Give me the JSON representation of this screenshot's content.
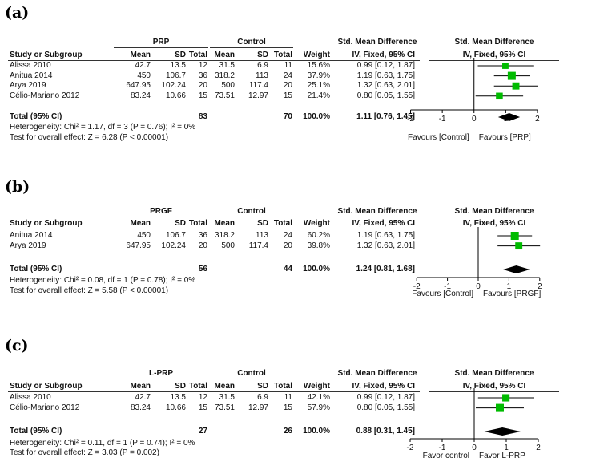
{
  "panels": [
    {
      "label": "(a)",
      "group_exp": "PRP",
      "group_ctl": "Control",
      "col_headers": [
        "Study or Subgroup",
        "Mean",
        "SD",
        "Total",
        "Mean",
        "SD",
        "Total",
        "Weight",
        "IV, Fixed, 95% CI",
        "IV, Fixed, 95% CI"
      ],
      "smd_header": "Std. Mean Difference",
      "rows": [
        {
          "study": "Alissa 2010",
          "m1": "42.7",
          "sd1": "13.5",
          "n1": "12",
          "m2": "31.5",
          "sd2": "6.9",
          "n2": "11",
          "w": "15.6%",
          "ci": "0.99 [0.12, 1.87]"
        },
        {
          "study": "Anitua 2014",
          "m1": "450",
          "sd1": "106.7",
          "n1": "36",
          "m2": "318.2",
          "sd2": "113",
          "n2": "24",
          "w": "37.9%",
          "ci": "1.19 [0.63, 1.75]"
        },
        {
          "study": "Arya 2019",
          "m1": "647.95",
          "sd1": "102.24",
          "n1": "20",
          "m2": "500",
          "sd2": "117.4",
          "n2": "20",
          "w": "25.1%",
          "ci": "1.32 [0.63, 2.01]"
        },
        {
          "study": "Célio-Mariano 2012",
          "m1": "83.24",
          "sd1": "10.66",
          "n1": "15",
          "m2": "73.51",
          "sd2": "12.97",
          "n2": "15",
          "w": "21.4%",
          "ci": "0.80 [0.05, 1.55]"
        }
      ],
      "total": {
        "label": "Total (95% CI)",
        "n1": "83",
        "n2": "70",
        "w": "100.0%",
        "ci": "1.11 [0.76, 1.45]"
      },
      "heterogeneity": "Heterogeneity: Chi² = 1.17, df = 3 (P = 0.76); I² = 0%",
      "overall": "Test for overall effect: Z = 6.28 (P < 0.00001)",
      "favours_left": "Favours [Control]",
      "favours_right": "Favours [PRP]"
    },
    {
      "label": "(b)",
      "group_exp": "PRGF",
      "group_ctl": "Control",
      "col_headers": [
        "Study or Subgroup",
        "Mean",
        "SD",
        "Total",
        "Mean",
        "SD",
        "Total",
        "Weight",
        "IV, Fixed, 95% CI",
        "IV, Fixed, 95% CI"
      ],
      "smd_header": "Std. Mean Difference",
      "rows": [
        {
          "study": "Anitua 2014",
          "m1": "450",
          "sd1": "106.7",
          "n1": "36",
          "m2": "318.2",
          "sd2": "113",
          "n2": "24",
          "w": "60.2%",
          "ci": "1.19 [0.63, 1.75]"
        },
        {
          "study": "Arya 2019",
          "m1": "647.95",
          "sd1": "102.24",
          "n1": "20",
          "m2": "500",
          "sd2": "117.4",
          "n2": "20",
          "w": "39.8%",
          "ci": "1.32 [0.63, 2.01]"
        }
      ],
      "total": {
        "label": "Total (95% CI)",
        "n1": "56",
        "n2": "44",
        "w": "100.0%",
        "ci": "1.24 [0.81, 1.68]"
      },
      "heterogeneity": "Heterogeneity: Chi² = 0.08, df = 1 (P = 0.78); I² = 0%",
      "overall": "Test for overall effect: Z = 5.58 (P < 0.00001)",
      "favours_left": "Favours [Control]",
      "favours_right": "Favours [PRGF]"
    },
    {
      "label": "(c)",
      "group_exp": "L-PRP",
      "group_ctl": "Control",
      "col_headers": [
        "Study or Subgroup",
        "Mean",
        "SD",
        "Total",
        "Mean",
        "SD",
        "Total",
        "Weight",
        "IV, Fixed, 95% CI",
        "IV, Fixed, 95% CI"
      ],
      "smd_header": "Std. Mean Difference",
      "rows": [
        {
          "study": "Alissa 2010",
          "m1": "42.7",
          "sd1": "13.5",
          "n1": "12",
          "m2": "31.5",
          "sd2": "6.9",
          "n2": "11",
          "w": "42.1%",
          "ci": "0.99 [0.12, 1.87]"
        },
        {
          "study": "Célio-Mariano 2012",
          "m1": "83.24",
          "sd1": "10.66",
          "n1": "15",
          "m2": "73.51",
          "sd2": "12.97",
          "n2": "15",
          "w": "57.9%",
          "ci": "0.80 [0.05, 1.55]"
        }
      ],
      "total": {
        "label": "Total (95% CI)",
        "n1": "27",
        "n2": "26",
        "w": "100.0%",
        "ci": "0.88 [0.31, 1.45]"
      },
      "heterogeneity": "Heterogeneity: Chi² = 0.11, df = 1 (P = 0.74); I² = 0%",
      "overall": "Test for overall effect: Z = 3.03 (P = 0.002)",
      "favours_left": "Favor control",
      "favours_right": "Favor L-PRP"
    }
  ],
  "chart_data": [
    {
      "type": "scatter",
      "xlim": [
        -2,
        2
      ],
      "ticks": [
        "-2",
        "-1",
        "0",
        "1",
        "2"
      ],
      "marker_color": "#00bb00",
      "studies": [
        {
          "name": "Alissa 2010",
          "smd": 0.99,
          "lo": 0.12,
          "hi": 1.87,
          "weight": 15.6
        },
        {
          "name": "Anitua 2014",
          "smd": 1.19,
          "lo": 0.63,
          "hi": 1.75,
          "weight": 37.9
        },
        {
          "name": "Arya 2019",
          "smd": 1.32,
          "lo": 0.63,
          "hi": 2.01,
          "weight": 25.1
        },
        {
          "name": "Célio-Mariano 2012",
          "smd": 0.8,
          "lo": 0.05,
          "hi": 1.55,
          "weight": 21.4
        }
      ],
      "pooled": {
        "smd": 1.11,
        "lo": 0.76,
        "hi": 1.45
      }
    },
    {
      "type": "scatter",
      "xlim": [
        -2,
        2
      ],
      "ticks": [
        "-2",
        "-1",
        "0",
        "1",
        "2"
      ],
      "marker_color": "#00bb00",
      "studies": [
        {
          "name": "Anitua 2014",
          "smd": 1.19,
          "lo": 0.63,
          "hi": 1.75,
          "weight": 60.2
        },
        {
          "name": "Arya 2019",
          "smd": 1.32,
          "lo": 0.63,
          "hi": 2.01,
          "weight": 39.8
        }
      ],
      "pooled": {
        "smd": 1.24,
        "lo": 0.81,
        "hi": 1.68
      }
    },
    {
      "type": "scatter",
      "xlim": [
        -2,
        2
      ],
      "ticks": [
        "-2",
        "-1",
        "0",
        "1",
        "2"
      ],
      "marker_color": "#00bb00",
      "studies": [
        {
          "name": "Alissa 2010",
          "smd": 0.99,
          "lo": 0.12,
          "hi": 1.87,
          "weight": 42.1
        },
        {
          "name": "Célio-Mariano 2012",
          "smd": 0.8,
          "lo": 0.05,
          "hi": 1.55,
          "weight": 57.9
        }
      ],
      "pooled": {
        "smd": 0.88,
        "lo": 0.31,
        "hi": 1.45
      }
    }
  ]
}
